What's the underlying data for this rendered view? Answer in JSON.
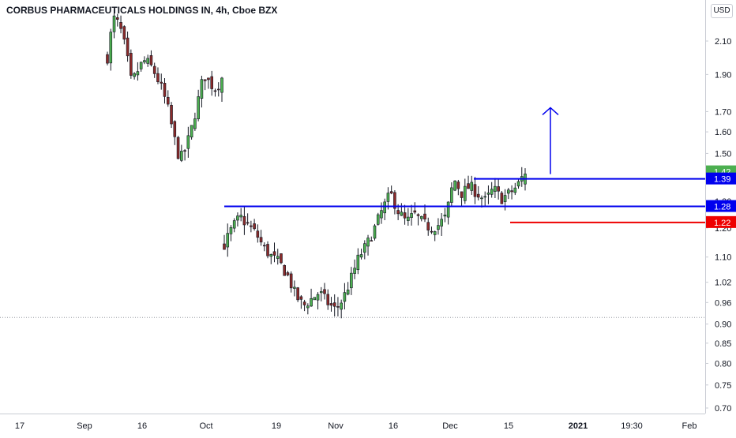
{
  "header": {
    "title": "CORBUS PHARMACEUTICALS HOLDINGS IN, 4h, Cboe BZX",
    "currency": "USD"
  },
  "colors": {
    "up": "#4caf50",
    "down": "#8b2a2a",
    "wick": "#131722",
    "line_blue": "#0000ee",
    "line_red": "#ee0000",
    "label_green": "#4caf50",
    "label_blue": "#0000ee",
    "label_red": "#ee0000",
    "axis_text": "#131722",
    "dotted": "#9598a1"
  },
  "chart_data": {
    "type": "candlestick",
    "y_scale": "log",
    "ylim": [
      0.68,
      2.35
    ],
    "y_ticks": [
      "2.10",
      "1.90",
      "1.70",
      "1.60",
      "1.50",
      "1.42",
      "1.30",
      "1.20",
      "1.10",
      "1.02",
      "0.96",
      "0.90",
      "0.85",
      "0.80",
      "0.75",
      "0.70"
    ],
    "x_ticks": [
      "17",
      "Sep",
      "16",
      "Oct",
      "19",
      "Nov",
      "16",
      "Dec",
      "15",
      "2021",
      "19:30",
      "Feb"
    ],
    "price_labels": [
      {
        "text": "1.42",
        "value": 1.42,
        "color": "label_green"
      },
      {
        "text": "1.39",
        "value": 1.39,
        "color": "label_blue"
      },
      {
        "text": "1.28",
        "value": 1.28,
        "color": "label_blue"
      },
      {
        "text": "1.22",
        "value": 1.22,
        "color": "label_red"
      }
    ],
    "horizontal_lines": [
      {
        "name": "resistance-upper",
        "value": 1.39,
        "x_from": "Dec 5",
        "color": "line_blue"
      },
      {
        "name": "resistance-lower",
        "value": 1.28,
        "x_from": "Oct 6",
        "color": "line_blue"
      },
      {
        "name": "support",
        "value": 1.22,
        "x_from": "Dec 15",
        "color": "line_red"
      }
    ],
    "dotted_line": {
      "value": 0.918
    },
    "arrow": {
      "x": "Dec 22",
      "from": 1.41,
      "to": 1.72
    },
    "segments": [
      {
        "name": "aug-sep",
        "start_x": 136,
        "end_x": 281,
        "points": [
          2.0,
          2.25,
          2.2,
          2.05,
          1.85,
          1.92,
          1.98,
          1.96,
          1.9,
          1.82,
          1.72,
          1.58,
          1.47,
          1.52,
          1.62,
          1.75,
          1.9,
          1.85,
          1.82,
          1.88
        ],
        "final_up": true
      },
      {
        "name": "oct-dec",
        "start_x": 284,
        "end_x": 665,
        "points": [
          1.14,
          1.2,
          1.24,
          1.21,
          1.18,
          1.13,
          1.1,
          1.08,
          1.04,
          0.98,
          0.95,
          0.97,
          0.99,
          0.96,
          0.94,
          0.97,
          1.03,
          1.1,
          1.14,
          1.2,
          1.27,
          1.33,
          1.26,
          1.22,
          1.25,
          1.22,
          1.2,
          1.21,
          1.24,
          1.39,
          1.33,
          1.36,
          1.33,
          1.3,
          1.35,
          1.31,
          1.33,
          1.36,
          1.42
        ],
        "final_up": true
      }
    ]
  }
}
